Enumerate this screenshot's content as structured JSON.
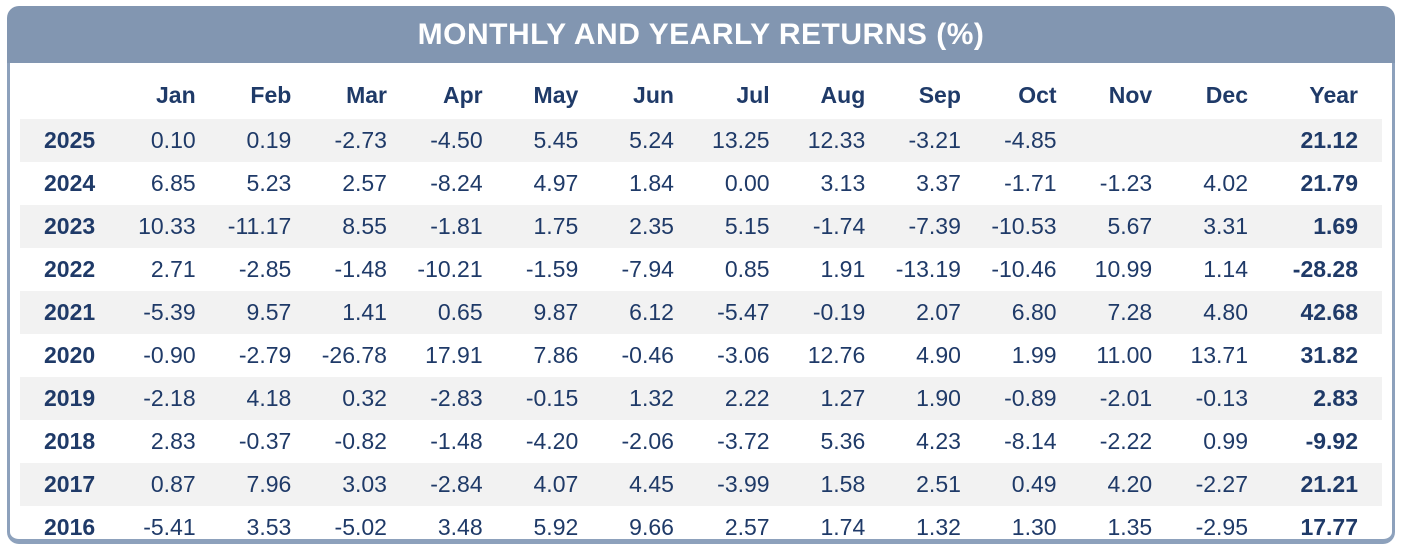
{
  "header": {
    "title": "MONTHLY AND YEARLY RETURNS (%)",
    "background": "#8296b1",
    "text_color": "#ffffff"
  },
  "colors": {
    "table_text": "#1f3a68",
    "stripe_row": "#f2f2f2",
    "panel_border": "#8da1bc",
    "body_background": "#ffffff"
  },
  "table": {
    "columns": [
      "",
      "Jan",
      "Feb",
      "Mar",
      "Apr",
      "May",
      "Jun",
      "Jul",
      "Aug",
      "Sep",
      "Oct",
      "Nov",
      "Dec",
      "Year"
    ]
  },
  "chart_data": {
    "type": "table",
    "title": "MONTHLY AND YEARLY RETURNS (%)",
    "columns": [
      "Jan",
      "Feb",
      "Mar",
      "Apr",
      "May",
      "Jun",
      "Jul",
      "Aug",
      "Sep",
      "Oct",
      "Nov",
      "Dec",
      "Year"
    ],
    "unit": "percent",
    "rows": [
      {
        "year": "2025",
        "values": [
          0.1,
          0.19,
          -2.73,
          -4.5,
          5.45,
          5.24,
          13.25,
          12.33,
          -3.21,
          -4.85,
          null,
          null
        ],
        "year_total": 21.12
      },
      {
        "year": "2024",
        "values": [
          6.85,
          5.23,
          2.57,
          -8.24,
          4.97,
          1.84,
          0.0,
          3.13,
          3.37,
          -1.71,
          -1.23,
          4.02
        ],
        "year_total": 21.79
      },
      {
        "year": "2023",
        "values": [
          10.33,
          -11.17,
          8.55,
          -1.81,
          1.75,
          2.35,
          5.15,
          -1.74,
          -7.39,
          -10.53,
          5.67,
          3.31
        ],
        "year_total": 1.69
      },
      {
        "year": "2022",
        "values": [
          2.71,
          -2.85,
          -1.48,
          -10.21,
          -1.59,
          -7.94,
          0.85,
          1.91,
          -13.19,
          -10.46,
          10.99,
          1.14
        ],
        "year_total": -28.28
      },
      {
        "year": "2021",
        "values": [
          -5.39,
          9.57,
          1.41,
          0.65,
          9.87,
          6.12,
          -5.47,
          -0.19,
          2.07,
          6.8,
          7.28,
          4.8
        ],
        "year_total": 42.68
      },
      {
        "year": "2020",
        "values": [
          -0.9,
          -2.79,
          -26.78,
          17.91,
          7.86,
          -0.46,
          -3.06,
          12.76,
          4.9,
          1.99,
          11.0,
          13.71
        ],
        "year_total": 31.82
      },
      {
        "year": "2019",
        "values": [
          -2.18,
          4.18,
          0.32,
          -2.83,
          -0.15,
          1.32,
          2.22,
          1.27,
          1.9,
          -0.89,
          -2.01,
          -0.13
        ],
        "year_total": 2.83
      },
      {
        "year": "2018",
        "values": [
          2.83,
          -0.37,
          -0.82,
          -1.48,
          -4.2,
          -2.06,
          -3.72,
          5.36,
          4.23,
          -8.14,
          -2.22,
          0.99
        ],
        "year_total": -9.92
      },
      {
        "year": "2017",
        "values": [
          0.87,
          7.96,
          3.03,
          -2.84,
          4.07,
          4.45,
          -3.99,
          1.58,
          2.51,
          0.49,
          4.2,
          -2.27
        ],
        "year_total": 21.21
      },
      {
        "year": "2016",
        "values": [
          -5.41,
          3.53,
          -5.02,
          3.48,
          5.92,
          9.66,
          2.57,
          1.74,
          1.32,
          1.3,
          1.35,
          -2.95
        ],
        "year_total": 17.77
      }
    ]
  }
}
